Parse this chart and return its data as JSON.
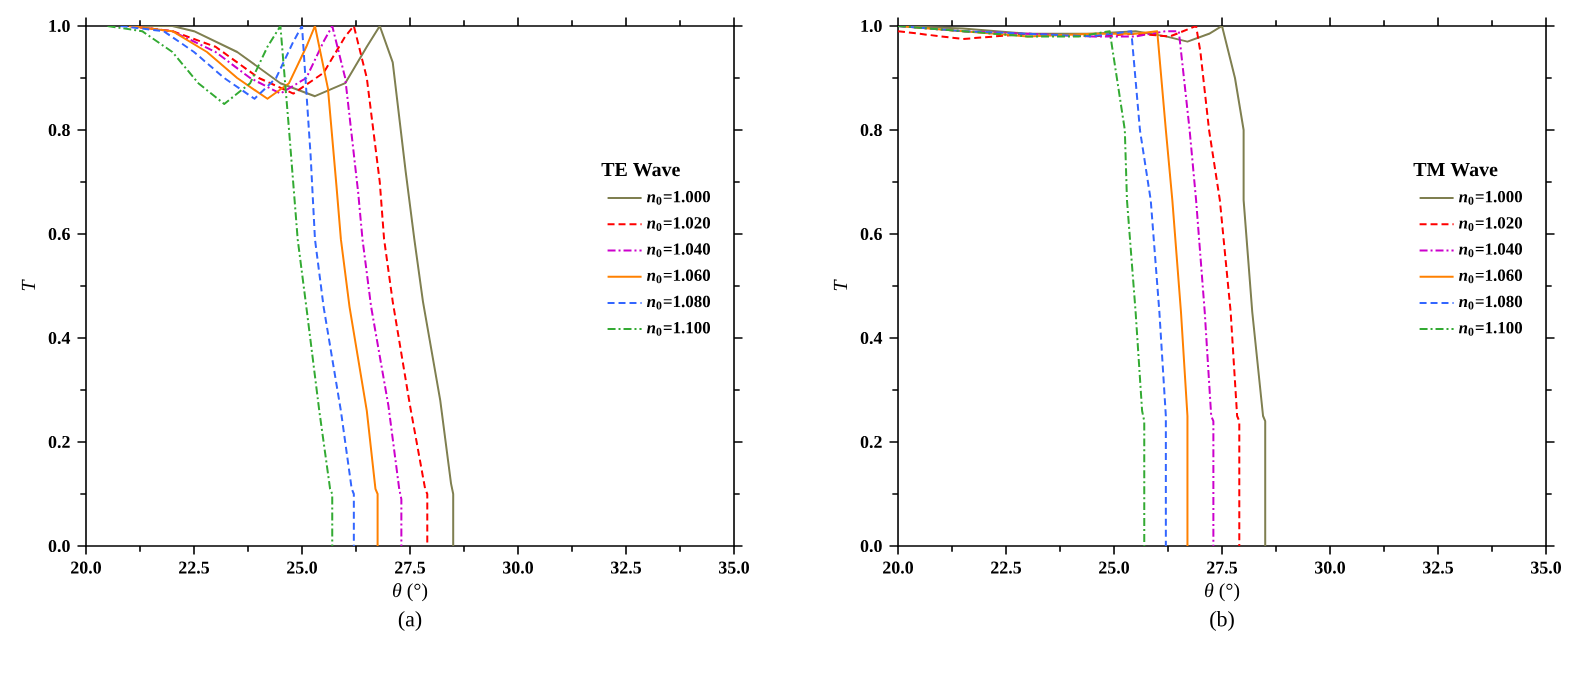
{
  "chart_data": [
    {
      "type": "line",
      "title": "(a)",
      "xlabel": "*θ* (°)",
      "ylabel": "T",
      "legend_title": "TE Wave",
      "legend": "right",
      "xlim": [
        20,
        35
      ],
      "ylim": [
        0,
        1
      ],
      "xticks": [
        {
          "value": 20,
          "label": "20.0"
        },
        {
          "value": 22.5,
          "label": "22.5"
        },
        {
          "value": 25,
          "label": "25.0"
        },
        {
          "value": 27.5,
          "label": "27.5"
        },
        {
          "value": 30,
          "label": "30.0"
        },
        {
          "value": 32.5,
          "label": "32.5"
        },
        {
          "value": 35,
          "label": "35.0"
        }
      ],
      "yticks": [
        {
          "value": 0,
          "label": "0.0"
        },
        {
          "value": 0.2,
          "label": "0.2"
        },
        {
          "value": 0.4,
          "label": "0.4"
        },
        {
          "value": 0.6,
          "label": "0.6"
        },
        {
          "value": 0.8,
          "label": "0.8"
        },
        {
          "value": 1,
          "label": "1.0"
        }
      ],
      "series": [
        {
          "name": "*n*$_{0}$=1.000",
          "color": "#7f7f50",
          "line_style": "solid",
          "x": [
            21.0,
            22.0,
            22.5,
            23.5,
            24.5,
            25.3,
            26.0,
            26.5,
            26.8,
            27.1,
            27.4,
            27.6,
            27.8,
            28.2,
            28.45,
            28.5,
            28.5
          ],
          "values": [
            1.0,
            1.0,
            0.99,
            0.95,
            0.89,
            0.865,
            0.89,
            0.96,
            1.0,
            0.93,
            0.72,
            0.59,
            0.47,
            0.28,
            0.12,
            0.1,
            0.0
          ]
        },
        {
          "name": "*n*$_{0}$=1.020",
          "color": "#ff0000",
          "line_style": "dashed",
          "x": [
            21.0,
            22.0,
            23.0,
            24.0,
            24.8,
            25.5,
            26.0,
            26.2,
            26.5,
            26.8,
            26.9,
            27.1,
            27.5,
            27.85,
            27.9,
            27.9
          ],
          "values": [
            1.0,
            0.99,
            0.96,
            0.9,
            0.87,
            0.91,
            0.98,
            1.0,
            0.9,
            0.7,
            0.59,
            0.47,
            0.27,
            0.11,
            0.1,
            0.0
          ]
        },
        {
          "name": "*n*$_{0}$=1.040",
          "color": "#cc00cc",
          "line_style": "dashdot",
          "x": [
            21.0,
            22.0,
            23.0,
            23.8,
            24.5,
            25.1,
            25.5,
            25.7,
            26.0,
            26.3,
            26.4,
            26.6,
            27.0,
            27.25,
            27.3,
            27.3
          ],
          "values": [
            1.0,
            0.99,
            0.95,
            0.9,
            0.87,
            0.9,
            0.97,
            1.0,
            0.9,
            0.68,
            0.59,
            0.46,
            0.27,
            0.11,
            0.09,
            0.0
          ]
        },
        {
          "name": "*n*$_{0}$=1.060",
          "color": "#ff8000",
          "line_style": "solid",
          "x": [
            21.0,
            22.0,
            22.8,
            23.5,
            24.2,
            24.7,
            25.1,
            25.3,
            25.6,
            25.8,
            25.9,
            26.1,
            26.5,
            26.7,
            26.75,
            26.75
          ],
          "values": [
            1.0,
            0.99,
            0.95,
            0.9,
            0.86,
            0.89,
            0.96,
            1.0,
            0.88,
            0.69,
            0.59,
            0.46,
            0.26,
            0.11,
            0.1,
            0.0
          ]
        },
        {
          "name": "*n*$_{0}$=1.080",
          "color": "#3366ff",
          "line_style": "dashed",
          "x": [
            20.8,
            21.8,
            22.5,
            23.2,
            23.9,
            24.4,
            24.8,
            25.0,
            25.2,
            25.3,
            25.5,
            25.9,
            26.15,
            26.2,
            26.2
          ],
          "values": [
            1.0,
            0.99,
            0.95,
            0.9,
            0.86,
            0.9,
            0.97,
            1.0,
            0.75,
            0.59,
            0.46,
            0.26,
            0.11,
            0.1,
            0.0
          ]
        },
        {
          "name": "*n*$_{0}$=1.100",
          "color": "#33aa33",
          "line_style": "dashdot",
          "x": [
            20.5,
            21.3,
            22.0,
            22.6,
            23.2,
            23.8,
            24.2,
            24.5,
            24.7,
            24.9,
            25.1,
            25.4,
            25.65,
            25.7,
            25.7
          ],
          "values": [
            1.0,
            0.99,
            0.95,
            0.89,
            0.85,
            0.89,
            0.96,
            1.0,
            0.8,
            0.59,
            0.46,
            0.26,
            0.11,
            0.1,
            0.0
          ]
        }
      ]
    },
    {
      "type": "line",
      "title": "(b)",
      "xlabel": "*θ* (°)",
      "ylabel": "T",
      "legend_title": "TM Wave",
      "legend": "right",
      "xlim": [
        20,
        35
      ],
      "ylim": [
        0,
        1
      ],
      "xticks": [
        {
          "value": 20,
          "label": "20.0"
        },
        {
          "value": 22.5,
          "label": "22.5"
        },
        {
          "value": 25,
          "label": "25.0"
        },
        {
          "value": 27.5,
          "label": "27.5"
        },
        {
          "value": 30,
          "label": "30.0"
        },
        {
          "value": 32.5,
          "label": "32.5"
        },
        {
          "value": 35,
          "label": "35.0"
        }
      ],
      "yticks": [
        {
          "value": 0,
          "label": "0.0"
        },
        {
          "value": 0.2,
          "label": "0.2"
        },
        {
          "value": 0.4,
          "label": "0.4"
        },
        {
          "value": 0.6,
          "label": "0.6"
        },
        {
          "value": 0.8,
          "label": "0.8"
        },
        {
          "value": 1,
          "label": "1.0"
        }
      ],
      "series": [
        {
          "name": "*n*$_{0}$=1.000",
          "color": "#7f7f50",
          "line_style": "solid",
          "x": [
            20.0,
            21.5,
            23.0,
            24.5,
            25.5,
            26.2,
            26.7,
            27.2,
            27.5,
            27.8,
            28.0,
            28.0,
            28.2,
            28.45,
            28.5,
            28.5
          ],
          "values": [
            1.0,
            0.995,
            0.985,
            0.985,
            0.99,
            0.98,
            0.97,
            0.985,
            1.0,
            0.9,
            0.8,
            0.665,
            0.45,
            0.25,
            0.24,
            0.0
          ]
        },
        {
          "name": "*n*$_{0}$=1.020",
          "color": "#ff0000",
          "line_style": "dashed",
          "x": [
            20.0,
            21.5,
            23.0,
            24.5,
            25.5,
            26.3,
            26.9,
            27.0,
            27.2,
            27.45,
            27.7,
            27.85,
            27.9,
            27.9
          ],
          "values": [
            0.99,
            0.975,
            0.985,
            0.98,
            0.985,
            0.98,
            1.0,
            0.95,
            0.8,
            0.665,
            0.45,
            0.25,
            0.24,
            0.0
          ]
        },
        {
          "name": "*n*$_{0}$=1.040",
          "color": "#cc00cc",
          "line_style": "dashdot",
          "x": [
            20.0,
            21.5,
            23.0,
            24.5,
            25.5,
            26.2,
            26.5,
            26.75,
            26.9,
            27.1,
            27.25,
            27.3,
            27.3
          ],
          "values": [
            1.0,
            0.99,
            0.985,
            0.98,
            0.98,
            0.99,
            0.99,
            0.8,
            0.665,
            0.45,
            0.25,
            0.24,
            0.0
          ]
        },
        {
          "name": "*n*$_{0}$=1.060",
          "color": "#ff8000",
          "line_style": "solid",
          "x": [
            20.0,
            21.5,
            23.0,
            24.5,
            25.5,
            26.0,
            26.2,
            26.35,
            26.55,
            26.7,
            26.7
          ],
          "values": [
            1.0,
            0.99,
            0.98,
            0.985,
            0.985,
            0.99,
            0.8,
            0.665,
            0.45,
            0.25,
            0.0
          ]
        },
        {
          "name": "*n*$_{0}$=1.080",
          "color": "#3366ff",
          "line_style": "dashed",
          "x": [
            20.0,
            21.5,
            23.0,
            24.5,
            25.4,
            25.6,
            25.85,
            26.05,
            26.2,
            26.2
          ],
          "values": [
            1.0,
            0.99,
            0.985,
            0.98,
            0.99,
            0.8,
            0.665,
            0.45,
            0.25,
            0.0
          ]
        },
        {
          "name": "*n*$_{0}$=1.100",
          "color": "#33aa33",
          "line_style": "dashdot",
          "x": [
            20.0,
            21.5,
            23.0,
            24.2,
            24.9,
            25.25,
            25.3,
            25.5,
            25.65,
            25.7,
            25.7
          ],
          "values": [
            1.0,
            0.99,
            0.98,
            0.98,
            0.99,
            0.8,
            0.665,
            0.45,
            0.26,
            0.24,
            0.0
          ]
        }
      ]
    }
  ]
}
